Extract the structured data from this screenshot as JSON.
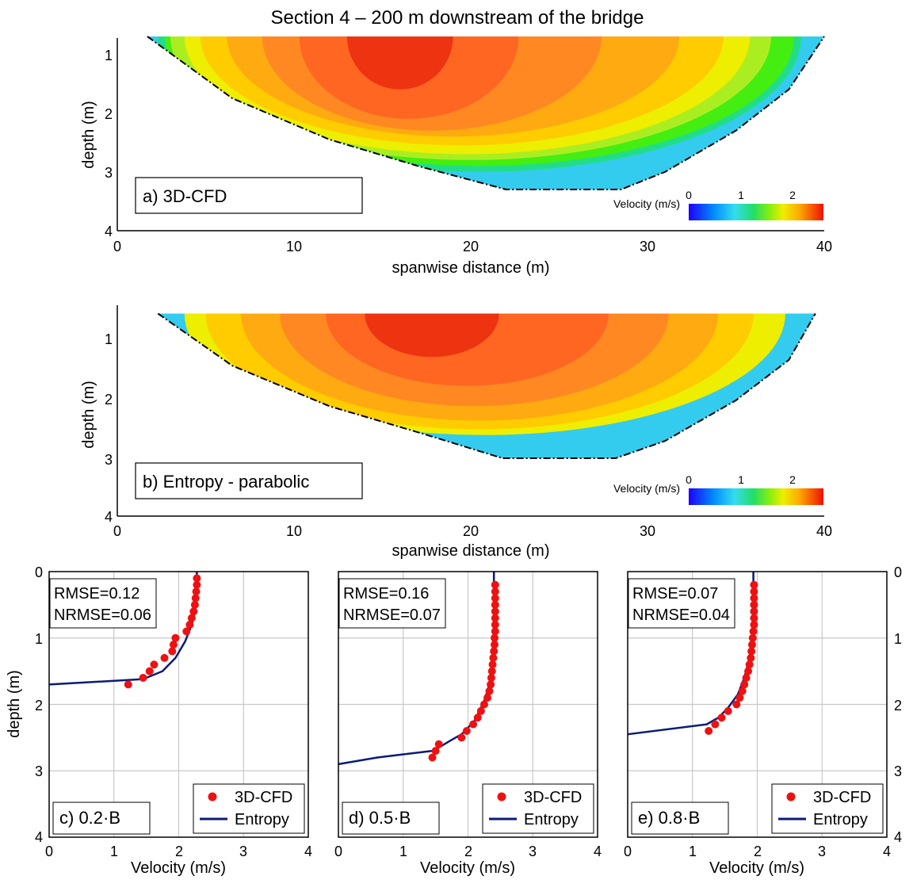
{
  "figure_title": "Section 4 – 200 m downstream of the bridge",
  "colors": {
    "contour_levels": [
      "#33ccee",
      "#22dd88",
      "#44ee11",
      "#aaee22",
      "#eeee00",
      "#ffcc00",
      "#ffaa11",
      "#ff8822",
      "#ff6622",
      "#ee3311"
    ],
    "cfd_points": "#ee1111",
    "entropy_line": "#0b1a78",
    "bed_line": "#000000",
    "grid": "#c8c8c8"
  },
  "chart_data": [
    {
      "type": "heatmap",
      "panel_label": "a) 3D-CFD",
      "xlabel": "spanwise distance (m)",
      "ylabel": "depth (m)",
      "xlim": [
        0,
        40
      ],
      "ylim": [
        4,
        0.5
      ],
      "x_ticks": [
        "0",
        "10",
        "20",
        "30",
        "40"
      ],
      "y_ticks": [
        "1",
        "2",
        "3",
        "4"
      ],
      "colorbar": {
        "label": "Velocity (m/s)",
        "range": [
          0,
          2.6
        ],
        "ticks": [
          "0",
          "1",
          "2"
        ]
      },
      "bed_profile": [
        [
          1.7,
          0.7
        ],
        [
          6.5,
          1.75
        ],
        [
          12,
          2.45
        ],
        [
          17,
          2.9
        ],
        [
          22,
          3.3
        ],
        [
          28.5,
          3.3
        ],
        [
          31,
          3.0
        ],
        [
          35,
          2.3
        ],
        [
          38,
          1.6
        ],
        [
          40,
          0.7
        ]
      ],
      "isotach_centers": [
        {
          "x": 20.5,
          "depth": 0.7,
          "rx": 18.2,
          "ry": 2.3
        },
        {
          "x": 20.5,
          "depth": 0.7,
          "rx": 17.8,
          "ry": 2.2
        },
        {
          "x": 20.0,
          "depth": 0.7,
          "rx": 17.0,
          "ry": 2.1
        },
        {
          "x": 19.8,
          "depth": 0.7,
          "rx": 16.0,
          "ry": 2.0
        },
        {
          "x": 19.5,
          "depth": 0.7,
          "rx": 14.8,
          "ry": 1.85
        },
        {
          "x": 19.0,
          "depth": 0.7,
          "rx": 12.8,
          "ry": 1.7
        },
        {
          "x": 17.8,
          "depth": 0.7,
          "rx": 9.6,
          "ry": 1.6
        },
        {
          "x": 16.5,
          "depth": 0.7,
          "rx": 6.2,
          "ry": 1.4
        },
        {
          "x": 16.0,
          "depth": 0.7,
          "rx": 3.0,
          "ry": 0.9
        }
      ]
    },
    {
      "type": "heatmap",
      "panel_label": "b) Entropy - parabolic",
      "xlabel": "spanwise distance (m)",
      "ylabel": "depth (m)",
      "xlim": [
        0,
        40
      ],
      "ylim": [
        4,
        0.5
      ],
      "x_ticks": [
        "0",
        "10",
        "20",
        "30",
        "40"
      ],
      "y_ticks": [
        "1",
        "2",
        "3",
        "4"
      ],
      "colorbar": {
        "label": "Velocity (m/s)",
        "range": [
          0,
          2.6
        ],
        "ticks": [
          "0",
          "1",
          "2"
        ]
      },
      "bed_profile": [
        [
          2.3,
          0.5
        ],
        [
          6.5,
          1.4
        ],
        [
          12,
          2.1
        ],
        [
          17,
          2.55
        ],
        [
          21.8,
          3.0
        ],
        [
          28.2,
          3.0
        ],
        [
          31,
          2.7
        ],
        [
          35,
          2.0
        ],
        [
          38,
          1.3
        ],
        [
          39.5,
          0.5
        ]
      ],
      "isotach_centers": [
        {
          "x": 20.8,
          "depth": 0.5,
          "rx": 17.0,
          "ry": 2.1
        },
        {
          "x": 20.5,
          "depth": 0.5,
          "rx": 15.5,
          "ry": 2.0
        },
        {
          "x": 20.5,
          "depth": 0.5,
          "rx": 13.5,
          "ry": 1.85
        },
        {
          "x": 20.2,
          "depth": 0.5,
          "rx": 11.0,
          "ry": 1.6
        },
        {
          "x": 19.8,
          "depth": 0.5,
          "rx": 8.0,
          "ry": 1.25
        },
        {
          "x": 17.8,
          "depth": 0.5,
          "rx": 3.8,
          "ry": 0.75
        }
      ]
    },
    {
      "type": "scatter",
      "panel_label": "c) 0.2·B",
      "xlabel": "Velocity (m/s)",
      "ylabel": "depth (m)",
      "xlim": [
        0,
        4
      ],
      "ylim": [
        4,
        0
      ],
      "x_ticks": [
        "0",
        "1",
        "2",
        "3",
        "4"
      ],
      "y_ticks": [
        "0",
        "1",
        "2",
        "3",
        "4"
      ],
      "stats": [
        "RMSE=0.12",
        "NRMSE=0.06"
      ],
      "legend": [
        "3D-CFD",
        "Entropy"
      ],
      "series": [
        {
          "name": "3D-CFD",
          "points": [
            [
              2.28,
              0.1
            ],
            [
              2.28,
              0.2
            ],
            [
              2.27,
              0.3
            ],
            [
              2.26,
              0.4
            ],
            [
              2.25,
              0.5
            ],
            [
              2.23,
              0.6
            ],
            [
              2.2,
              0.7
            ],
            [
              2.17,
              0.8
            ],
            [
              2.12,
              0.9
            ],
            [
              1.95,
              1.0
            ],
            [
              1.92,
              1.1
            ],
            [
              1.9,
              1.2
            ],
            [
              1.78,
              1.3
            ],
            [
              1.62,
              1.4
            ],
            [
              1.55,
              1.5
            ],
            [
              1.45,
              1.6
            ],
            [
              1.22,
              1.7
            ]
          ]
        },
        {
          "name": "Entropy",
          "points": [
            [
              2.28,
              0.0
            ],
            [
              2.28,
              0.3
            ],
            [
              2.26,
              0.55
            ],
            [
              2.2,
              0.8
            ],
            [
              2.1,
              1.05
            ],
            [
              1.95,
              1.3
            ],
            [
              1.75,
              1.5
            ],
            [
              1.45,
              1.62
            ],
            [
              0.0,
              1.7
            ]
          ]
        }
      ]
    },
    {
      "type": "scatter",
      "panel_label": "d) 0.5·B",
      "xlabel": "Velocity (m/s)",
      "ylabel": "depth (m)",
      "xlim": [
        0,
        4
      ],
      "ylim": [
        4,
        0
      ],
      "x_ticks": [
        "0",
        "1",
        "2",
        "3",
        "4"
      ],
      "y_ticks": [
        "0",
        "1",
        "2",
        "3",
        "4"
      ],
      "stats": [
        "RMSE=0.16",
        "NRMSE=0.07"
      ],
      "legend": [
        "3D-CFD",
        "Entropy"
      ],
      "series": [
        {
          "name": "3D-CFD",
          "points": [
            [
              2.42,
              0.2
            ],
            [
              2.42,
              0.3
            ],
            [
              2.42,
              0.4
            ],
            [
              2.42,
              0.5
            ],
            [
              2.42,
              0.6
            ],
            [
              2.42,
              0.7
            ],
            [
              2.42,
              0.8
            ],
            [
              2.42,
              0.9
            ],
            [
              2.41,
              1.0
            ],
            [
              2.41,
              1.1
            ],
            [
              2.4,
              1.2
            ],
            [
              2.39,
              1.3
            ],
            [
              2.38,
              1.4
            ],
            [
              2.37,
              1.5
            ],
            [
              2.36,
              1.6
            ],
            [
              2.35,
              1.7
            ],
            [
              2.33,
              1.8
            ],
            [
              2.3,
              1.9
            ],
            [
              2.25,
              2.0
            ],
            [
              2.2,
              2.1
            ],
            [
              2.15,
              2.2
            ],
            [
              2.08,
              2.3
            ],
            [
              1.98,
              2.4
            ],
            [
              1.9,
              2.5
            ],
            [
              1.55,
              2.6
            ],
            [
              1.5,
              2.7
            ],
            [
              1.45,
              2.8
            ]
          ]
        },
        {
          "name": "Entropy",
          "points": [
            [
              2.4,
              0.0
            ],
            [
              2.4,
              0.8
            ],
            [
              2.38,
              1.3
            ],
            [
              2.33,
              1.7
            ],
            [
              2.25,
              1.95
            ],
            [
              2.1,
              2.25
            ],
            [
              1.9,
              2.45
            ],
            [
              1.72,
              2.55
            ],
            [
              1.55,
              2.65
            ],
            [
              1.45,
              2.7
            ],
            [
              0.6,
              2.8
            ],
            [
              0.0,
              2.9
            ]
          ]
        }
      ]
    },
    {
      "type": "scatter",
      "panel_label": "e) 0.8·B",
      "xlabel": "Velocity (m/s)",
      "ylabel": "depth (m)",
      "xlim": [
        0,
        4
      ],
      "ylim": [
        4,
        0
      ],
      "x_ticks": [
        "0",
        "1",
        "2",
        "3",
        "4"
      ],
      "y_ticks": [
        "0",
        "1",
        "2",
        "3",
        "4"
      ],
      "stats": [
        "RMSE=0.07",
        "NRMSE=0.04"
      ],
      "legend": [
        "3D-CFD",
        "Entropy"
      ],
      "series": [
        {
          "name": "3D-CFD",
          "points": [
            [
              1.95,
              0.2
            ],
            [
              1.95,
              0.3
            ],
            [
              1.95,
              0.4
            ],
            [
              1.95,
              0.5
            ],
            [
              1.95,
              0.6
            ],
            [
              1.95,
              0.7
            ],
            [
              1.95,
              0.8
            ],
            [
              1.94,
              0.9
            ],
            [
              1.93,
              1.0
            ],
            [
              1.92,
              1.1
            ],
            [
              1.91,
              1.2
            ],
            [
              1.9,
              1.3
            ],
            [
              1.88,
              1.4
            ],
            [
              1.86,
              1.5
            ],
            [
              1.83,
              1.6
            ],
            [
              1.8,
              1.7
            ],
            [
              1.77,
              1.8
            ],
            [
              1.73,
              1.9
            ],
            [
              1.68,
              2.0
            ],
            [
              1.55,
              2.1
            ],
            [
              1.45,
              2.2
            ],
            [
              1.35,
              2.3
            ],
            [
              1.25,
              2.4
            ]
          ]
        },
        {
          "name": "Entropy",
          "points": [
            [
              1.94,
              0.0
            ],
            [
              1.94,
              0.6
            ],
            [
              1.92,
              1.0
            ],
            [
              1.88,
              1.3
            ],
            [
              1.8,
              1.6
            ],
            [
              1.7,
              1.85
            ],
            [
              1.55,
              2.05
            ],
            [
              1.4,
              2.2
            ],
            [
              1.22,
              2.3
            ],
            [
              0.0,
              2.45
            ]
          ]
        }
      ]
    }
  ]
}
